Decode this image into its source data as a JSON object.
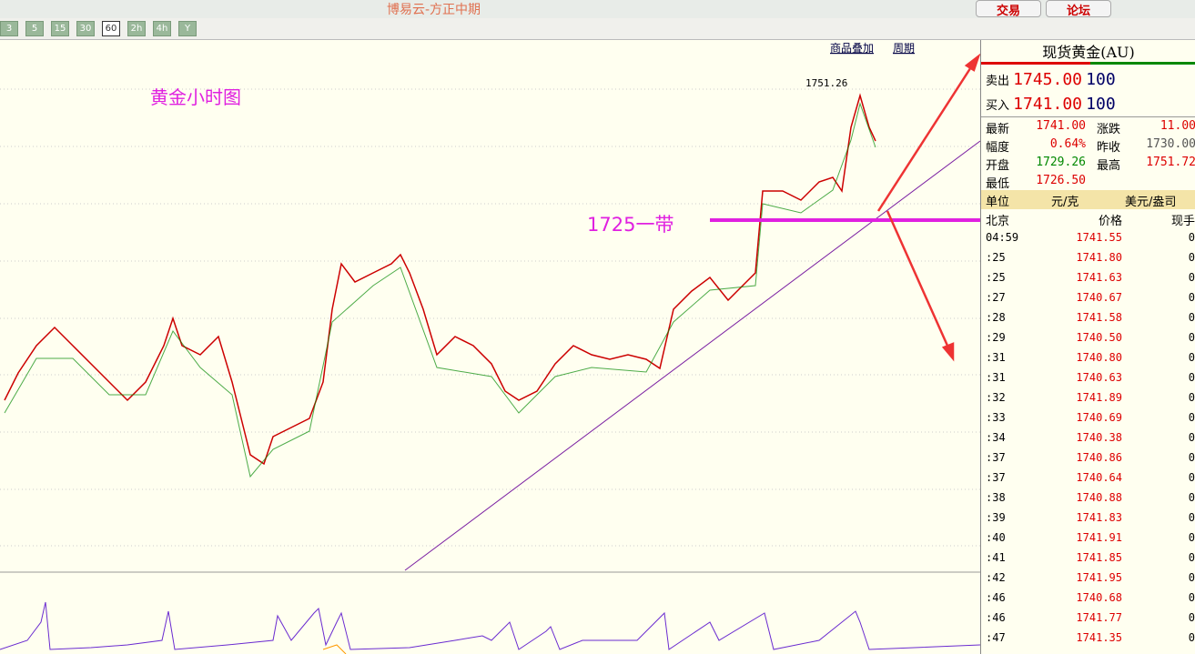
{
  "window": {
    "title": "博易云-方正中期",
    "buttons": [
      "交易",
      "论坛"
    ]
  },
  "toolbar": {
    "periods": [
      "3",
      "5",
      "15",
      "30",
      "60",
      "2h",
      "4h",
      "Y"
    ]
  },
  "chart": {
    "links": [
      "商品叠加",
      "周期"
    ],
    "title": "黄金小时图",
    "annotation": "1725一带",
    "high_label": "1751.26"
  },
  "quote": {
    "title": "现货黄金(AU)",
    "sell": {
      "label": "卖出",
      "price": "1745.00",
      "qty": "100"
    },
    "buy": {
      "label": "买入",
      "price": "1741.00",
      "qty": "100"
    },
    "stats": [
      [
        "最新",
        "1741.00",
        "涨跌",
        "11.00"
      ],
      [
        "幅度",
        "0.64%",
        "昨收",
        "1730.00"
      ],
      [
        "开盘",
        "1729.26",
        "最高",
        "1751.72"
      ],
      [
        "最低",
        "1726.50"
      ]
    ],
    "unit": {
      "label": "单位",
      "left": "元/克",
      "right": "美元/盎司"
    },
    "ticks_header": [
      "北京",
      "价格",
      "现手"
    ],
    "ticks": [
      [
        "04:59",
        "1741.55",
        "0"
      ],
      [
        ":25",
        "1741.80",
        "0"
      ],
      [
        ":25",
        "1741.63",
        "0"
      ],
      [
        ":27",
        "1740.67",
        "0"
      ],
      [
        ":28",
        "1741.58",
        "0"
      ],
      [
        ":29",
        "1740.50",
        "0"
      ],
      [
        ":31",
        "1740.80",
        "0"
      ],
      [
        ":31",
        "1740.63",
        "0"
      ],
      [
        ":32",
        "1741.89",
        "0"
      ],
      [
        ":33",
        "1740.69",
        "0"
      ],
      [
        ":34",
        "1740.38",
        "0"
      ],
      [
        ":37",
        "1740.86",
        "0"
      ],
      [
        ":37",
        "1740.64",
        "0"
      ],
      [
        ":38",
        "1740.88",
        "0"
      ],
      [
        ":39",
        "1741.83",
        "0"
      ],
      [
        ":40",
        "1741.91",
        "0"
      ],
      [
        ":41",
        "1741.85",
        "0"
      ],
      [
        ":42",
        "1741.95",
        "0"
      ],
      [
        ":46",
        "1740.68",
        "0"
      ],
      [
        ":46",
        "1741.77",
        "0"
      ],
      [
        ":47",
        "1741.35",
        "0"
      ]
    ]
  }
}
